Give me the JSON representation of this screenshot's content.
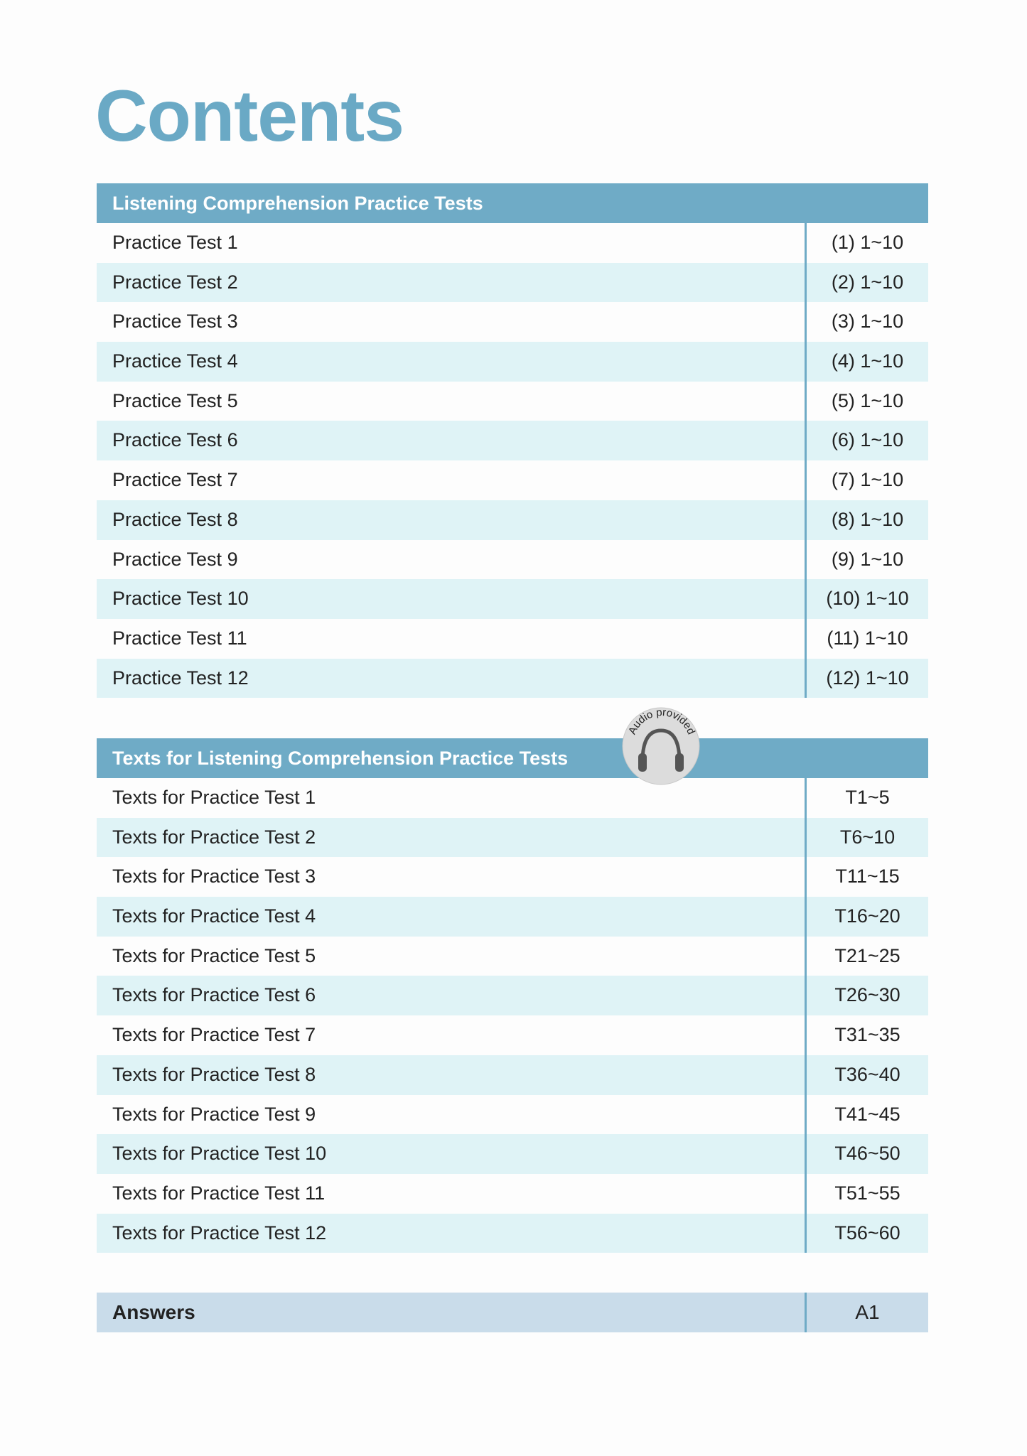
{
  "title": "Contents",
  "sections": [
    {
      "header": "Listening Comprehension Practice Tests",
      "rows": [
        {
          "label": "Practice Test 1",
          "pages": "(1) 1~10"
        },
        {
          "label": "Practice Test 2",
          "pages": "(2) 1~10"
        },
        {
          "label": "Practice Test 3",
          "pages": "(3) 1~10"
        },
        {
          "label": "Practice Test 4",
          "pages": "(4) 1~10"
        },
        {
          "label": "Practice Test 5",
          "pages": "(5) 1~10"
        },
        {
          "label": "Practice Test 6",
          "pages": "(6) 1~10"
        },
        {
          "label": "Practice Test 7",
          "pages": "(7) 1~10"
        },
        {
          "label": "Practice Test 8",
          "pages": "(8) 1~10"
        },
        {
          "label": "Practice Test 9",
          "pages": "(9) 1~10"
        },
        {
          "label": "Practice Test 10",
          "pages": "(10) 1~10"
        },
        {
          "label": "Practice Test 11",
          "pages": "(11) 1~10"
        },
        {
          "label": "Practice Test 12",
          "pages": "(12) 1~10"
        }
      ]
    },
    {
      "header": "Texts for Listening Comprehension Practice Tests",
      "badge": {
        "text": "Audio provided",
        "icon": "headphones-icon"
      },
      "rows": [
        {
          "label": "Texts for Practice Test 1",
          "pages": "T1~5"
        },
        {
          "label": "Texts for Practice Test 2",
          "pages": "T6~10"
        },
        {
          "label": "Texts for Practice Test 3",
          "pages": "T11~15"
        },
        {
          "label": "Texts for Practice Test 4",
          "pages": "T16~20"
        },
        {
          "label": "Texts for Practice Test 5",
          "pages": "T21~25"
        },
        {
          "label": "Texts for Practice Test 6",
          "pages": "T26~30"
        },
        {
          "label": "Texts for Practice Test 7",
          "pages": "T31~35"
        },
        {
          "label": "Texts for Practice Test 8",
          "pages": "T36~40"
        },
        {
          "label": "Texts for Practice Test 9",
          "pages": "T41~45"
        },
        {
          "label": "Texts for Practice Test 10",
          "pages": "T46~50"
        },
        {
          "label": "Texts for Practice Test 11",
          "pages": "T51~55"
        },
        {
          "label": "Texts for Practice Test 12",
          "pages": "T56~60"
        }
      ]
    }
  ],
  "answers": {
    "label": "Answers",
    "pages": "A1"
  },
  "colors": {
    "accent": "#6fabc6",
    "title": "#6aa9c5",
    "row_alt": "#dff3f6",
    "answers_bg": "#c9dcea"
  }
}
